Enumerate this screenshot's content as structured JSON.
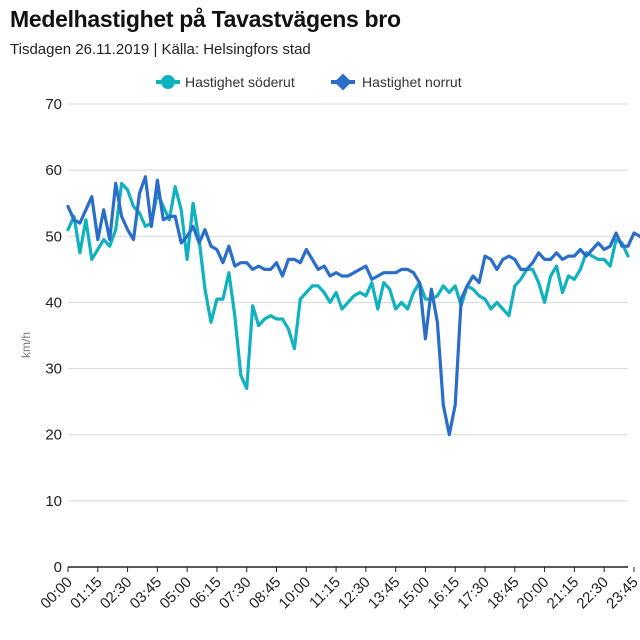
{
  "title": "Medelhastighet på Tavastvägens bro",
  "subtitle": "Tisdagen 26.11.2019 | Källa: Helsingfors stad",
  "colors": {
    "sodert": "#10b2c0",
    "norrut": "#2a6ec9",
    "grid": "#d8d8d8",
    "axis": "#222222"
  },
  "chart_data": {
    "type": "line",
    "title": "Medelhastighet på Tavastvägens bro",
    "xlabel": "",
    "ylabel": "km/h",
    "ylim": [
      0,
      70
    ],
    "yticks": [
      0,
      10,
      20,
      30,
      40,
      50,
      60,
      70
    ],
    "grid": true,
    "legend": "top-center",
    "xtick_labels": [
      "00:00",
      "01:15",
      "02:30",
      "03:45",
      "05:00",
      "06:15",
      "07:30",
      "08:45",
      "10:00",
      "11:15",
      "12:30",
      "13:45",
      "15:00",
      "16:15",
      "17:30",
      "18:45",
      "20:00",
      "21:15",
      "22:30",
      "23:45"
    ],
    "interval_minutes": 15,
    "series": [
      {
        "name": "Hastighet söderut",
        "values": [
          51,
          53,
          47.5,
          52.5,
          46.5,
          48,
          49.5,
          48.5,
          51,
          58,
          57,
          54.5,
          53.5,
          51.5,
          52,
          56.5,
          54.5,
          52.5,
          57.5,
          54,
          46.5,
          55,
          49.5,
          42,
          37,
          40.5,
          40.5,
          44.5,
          38,
          29,
          27,
          39.5,
          36.5,
          37.5,
          38,
          37.5,
          37.5,
          36,
          33,
          40.5,
          41.5,
          42.5,
          42.5,
          41.5,
          40,
          41.5,
          39,
          40,
          41,
          41.5,
          41,
          43,
          39,
          43,
          42,
          39,
          40,
          39,
          41.5,
          43,
          40.5,
          40.5,
          41,
          42.5,
          41.5,
          42.5,
          39.5,
          42.5,
          42,
          41,
          40.5,
          39,
          40,
          39,
          38,
          42.5,
          43.5,
          45,
          45,
          43,
          40,
          44,
          45.5,
          41.5,
          44,
          43.5,
          45,
          47.5,
          47,
          46.5,
          46.5,
          45.5,
          49.5,
          49,
          47
        ]
      },
      {
        "name": "Hastighet norrut",
        "values": [
          54.5,
          52.5,
          52,
          54,
          56,
          49.5,
          54,
          49.5,
          58,
          53,
          51,
          49.5,
          56.5,
          59,
          51.5,
          58.5,
          52.5,
          53,
          53,
          49,
          50,
          51.5,
          49,
          51,
          48.5,
          48,
          46,
          48.5,
          45.5,
          46,
          46,
          45,
          45.5,
          45,
          45,
          46,
          44,
          46.5,
          46.5,
          46,
          48,
          46.5,
          45,
          45.5,
          44,
          44.5,
          44,
          44,
          44.5,
          45,
          45.5,
          43.5,
          44,
          44.5,
          44.5,
          44.5,
          45,
          45,
          44.5,
          43,
          34.5,
          42,
          37,
          24.5,
          20,
          24.5,
          40.5,
          42.5,
          44,
          43,
          47,
          46.5,
          45,
          46.5,
          47,
          46.5,
          45,
          45,
          46,
          47.5,
          46.5,
          46.5,
          47.5,
          46.5,
          47,
          47,
          48,
          47,
          48,
          49,
          48,
          48.5,
          50.5,
          48.5,
          48.5,
          50.5,
          50
        ]
      }
    ]
  },
  "legend": {
    "sodert_label": "Hastighet söderut",
    "norrut_label": "Hastighet norrut",
    "sodert_icon": "circle-marker",
    "norrut_icon": "diamond-marker"
  }
}
